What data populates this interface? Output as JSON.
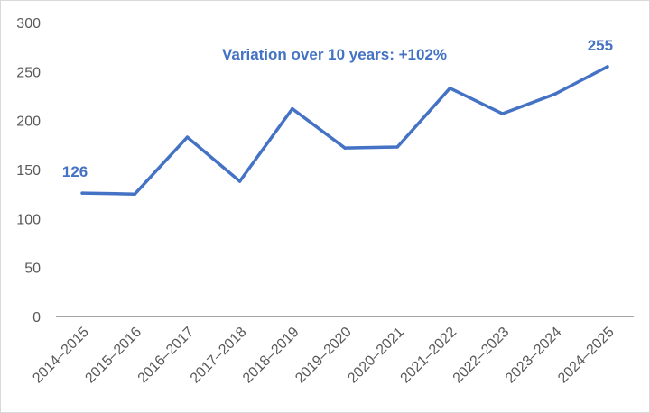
{
  "chart_data": {
    "type": "line",
    "title": "",
    "xlabel": "",
    "ylabel": "",
    "ylim": [
      0,
      300
    ],
    "yticks": [
      "0",
      "50",
      "100",
      "150",
      "200",
      "250",
      "300"
    ],
    "categories": [
      "2014–2015",
      "2015–2016",
      "2016–2017",
      "2017–2018",
      "2018–2019",
      "2019–2020",
      "2020–2021",
      "2021–2022",
      "2022–2023",
      "2023–2024",
      "2024–2025"
    ],
    "series": [
      {
        "values": [
          126,
          125,
          183,
          138,
          212,
          172,
          173,
          233,
          207,
          227,
          255
        ]
      }
    ],
    "data_labels": [
      {
        "index": 0,
        "text": "126"
      },
      {
        "index": 10,
        "text": "255"
      }
    ],
    "annotation": "Variation over 10 years: +102%",
    "grid": false,
    "legend": "none",
    "colors": {
      "line": "#4472c4",
      "axis": "#a6a6a6",
      "tick_text": "#595959",
      "label_text": "#4472c4"
    }
  }
}
